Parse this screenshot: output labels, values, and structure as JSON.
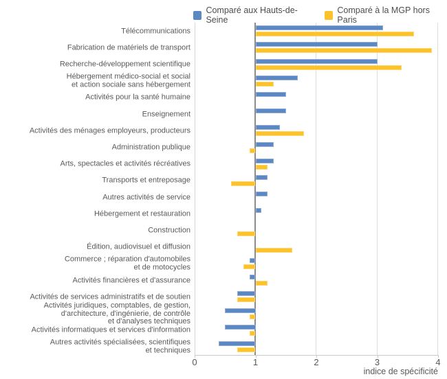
{
  "legend": {
    "items": [
      {
        "label": "Comparé aux Hauts-de-Seine",
        "color": "#5b88c2"
      },
      {
        "label": "Comparé à la MGP hors Paris",
        "color": "#fcc22c"
      }
    ]
  },
  "axis": {
    "title": "indice de spécificité",
    "ticks": [
      0,
      1,
      2,
      3,
      4
    ]
  },
  "chart_data": {
    "type": "bar",
    "orientation": "horizontal",
    "baseline": 1,
    "xlim": [
      0,
      4
    ],
    "xlabel": "indice de spécificité",
    "grid": true,
    "legend_position": "top",
    "categories": [
      [
        "Télécommunications"
      ],
      [
        "Fabrication de matériels de transport"
      ],
      [
        "Recherche-développement scientifique"
      ],
      [
        "Hébergement médico-social et social",
        "et action sociale sans hébergement"
      ],
      [
        "Activités pour la santé humaine"
      ],
      [
        "Enseignement"
      ],
      [
        "Activités des ménages employeurs, producteurs"
      ],
      [
        "Administration publique"
      ],
      [
        "Arts, spectacles et activités récréatives"
      ],
      [
        "Transports et entreposage"
      ],
      [
        "Autres activités de service"
      ],
      [
        "Hébergement et restauration"
      ],
      [
        "Construction"
      ],
      [
        "Édition, audiovisuel et diffusion"
      ],
      [
        "Commerce ; réparation d'automobiles",
        "et de motocycles"
      ],
      [
        "Activités financières et d'assurance"
      ],
      [
        "Activités de services administratifs et de soutien"
      ],
      [
        "Activités juridiques, comptables, de gestion,",
        "d'architecture, d'ingénierie, de contrôle",
        "et d'analyses techniques"
      ],
      [
        "Activités informatiques et services d'information"
      ],
      [
        "Autres activités spécialisées, scientifiques",
        "et techniques"
      ]
    ],
    "series": [
      {
        "name": "Comparé aux Hauts-de-Seine",
        "color": "#5b88c2",
        "border_color": "#8fadd8",
        "values": [
          3.1,
          3.0,
          3.0,
          1.7,
          1.5,
          1.5,
          1.4,
          1.3,
          1.3,
          1.2,
          1.2,
          1.1,
          1.0,
          1.0,
          0.9,
          0.9,
          0.7,
          0.5,
          0.5,
          0.4
        ]
      },
      {
        "name": "Comparé à la MGP hors Paris",
        "color": "#fcc22c",
        "border_color": "#fdd76b",
        "values": [
          3.6,
          3.9,
          3.4,
          1.3,
          1.0,
          1.0,
          1.8,
          0.9,
          1.2,
          0.6,
          1.0,
          1.0,
          0.7,
          1.6,
          0.8,
          1.2,
          0.7,
          0.9,
          0.9,
          0.7
        ]
      }
    ]
  }
}
